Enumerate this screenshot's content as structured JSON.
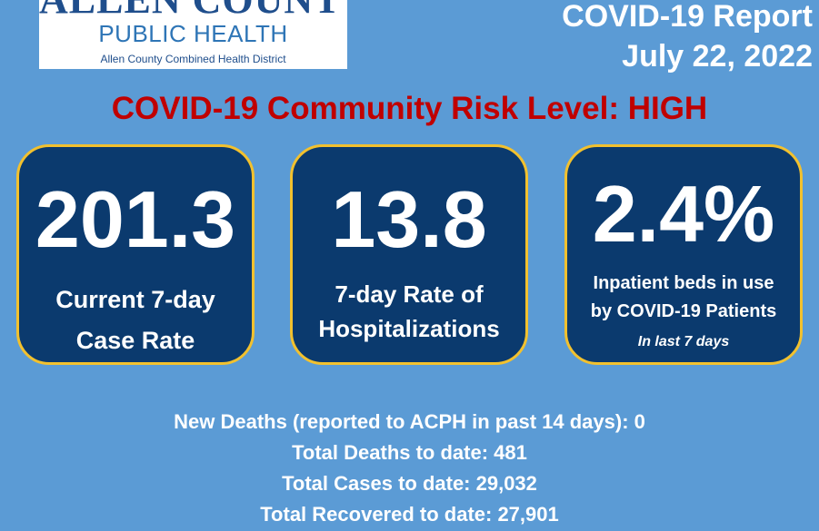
{
  "logo": {
    "county": "ALLEN COUNTY",
    "department": "PUBLIC HEALTH",
    "district": "Allen County Combined Health District"
  },
  "report": {
    "title": "COVID-19 Report",
    "date": "July 22, 2022"
  },
  "risk_level": "COVID-19 Community Risk Level: HIGH",
  "stats": [
    {
      "value": "201.3",
      "label_line1": "Current 7-day",
      "label_line2": "Case Rate"
    },
    {
      "value": "13.8",
      "label_line1": "7-day Rate of",
      "label_line2": "Hospitalizations"
    },
    {
      "value": "2.4%",
      "label_line1": "Inpatient beds in use",
      "label_line2": "by COVID-19 Patients",
      "note": "In last  7 days"
    }
  ],
  "summary": {
    "new_deaths": "New Deaths (reported to ACPH in past 14 days): 0",
    "total_deaths": "Total Deaths to date: 481",
    "total_cases": "Total Cases to date: 29,032",
    "total_recovered": "Total Recovered to date: 27,901"
  },
  "colors": {
    "background": "#5b9bd5",
    "card": "#0b3a6e",
    "card_border": "#f2c12e",
    "risk_text": "#c00000"
  }
}
